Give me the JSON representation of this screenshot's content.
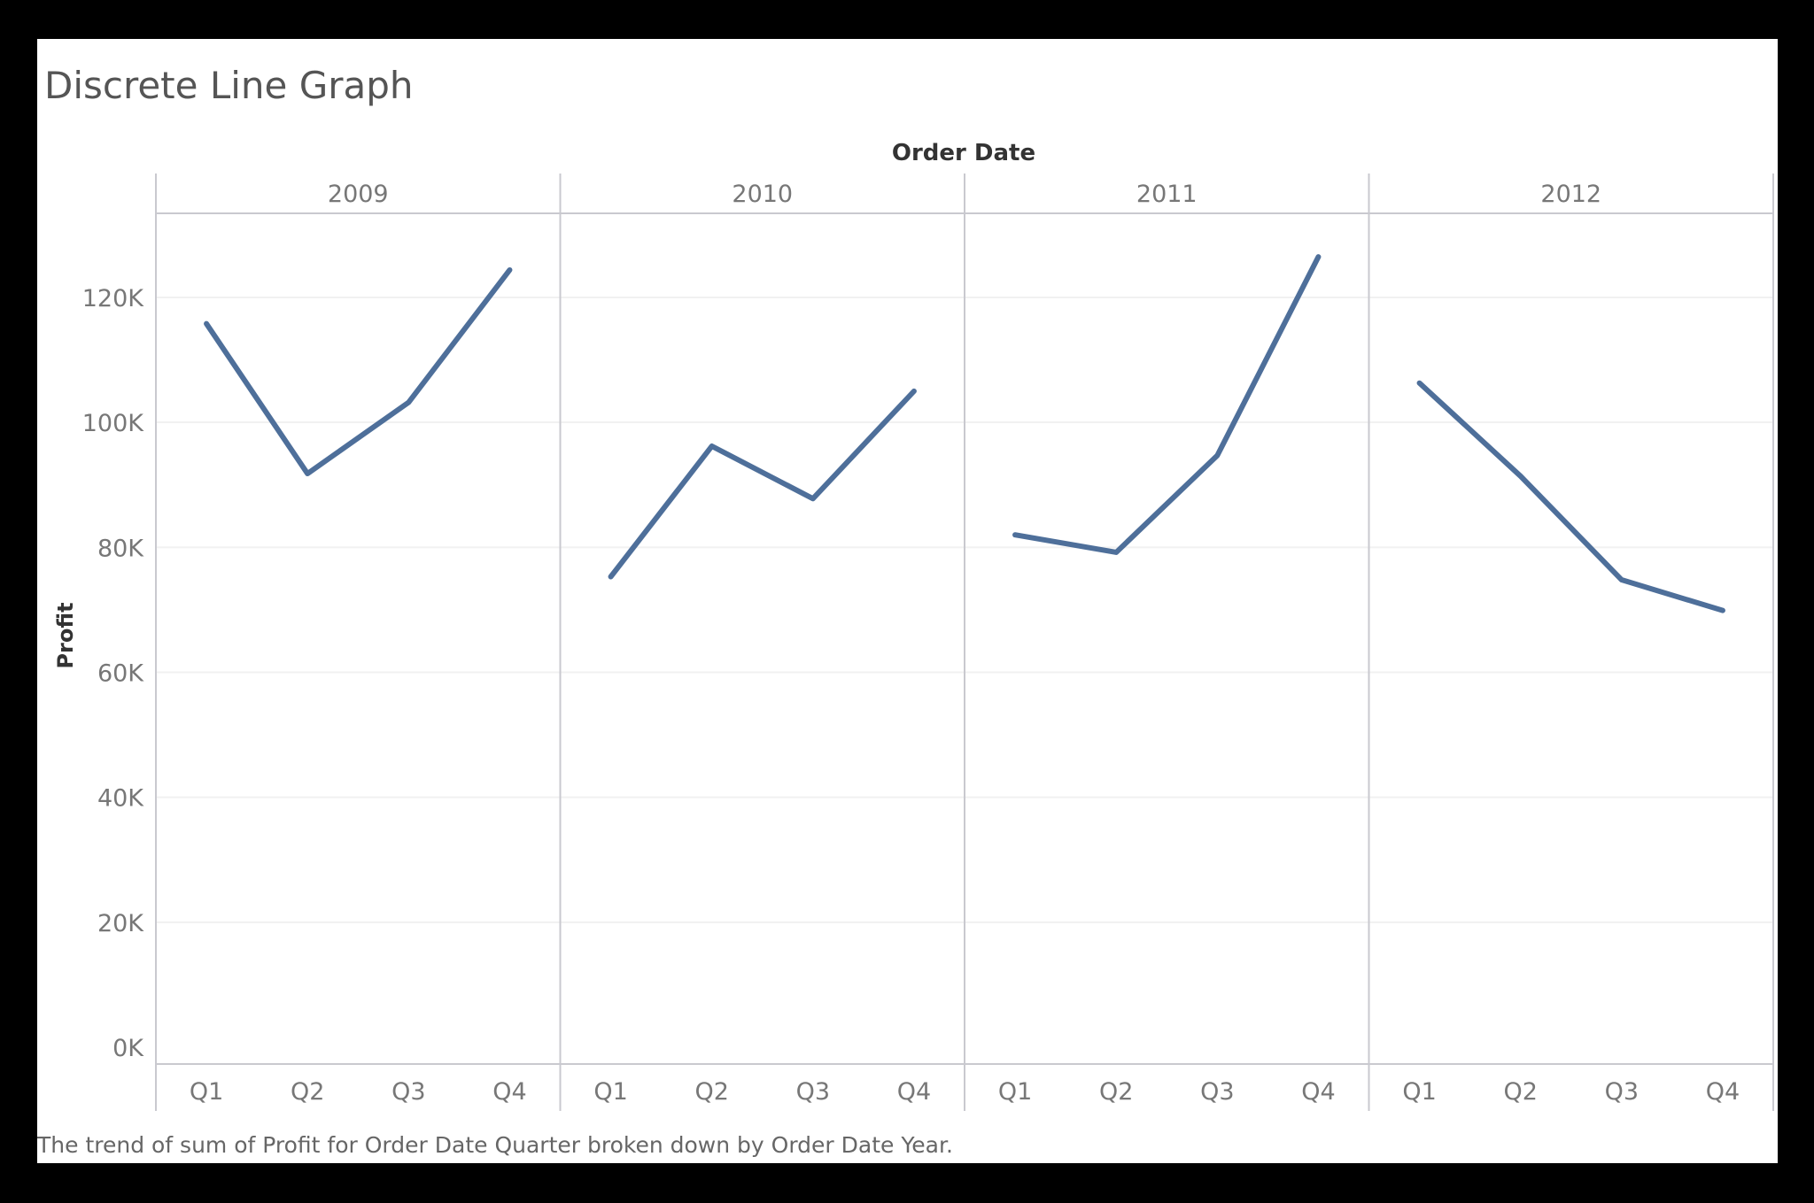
{
  "chart_data": {
    "type": "line",
    "title": "Discrete Line Graph",
    "column_header": "Order Date",
    "ylabel": "Profit",
    "caption": "The trend of sum of Profit for Order Date Quarter broken down by Order Date Year.",
    "ylim": [
      0,
      132000
    ],
    "y_ticks": [
      0,
      20000,
      40000,
      60000,
      80000,
      100000,
      120000
    ],
    "y_tick_labels": [
      "0K",
      "20K",
      "40K",
      "60K",
      "80K",
      "100K",
      "120K"
    ],
    "categories": [
      "Q1",
      "Q2",
      "Q3",
      "Q4"
    ],
    "panels": [
      {
        "year": "2009",
        "values": [
          115800,
          91800,
          103200,
          124400
        ]
      },
      {
        "year": "2010",
        "values": [
          75300,
          96200,
          87800,
          105000
        ]
      },
      {
        "year": "2011",
        "values": [
          82000,
          79200,
          94700,
          126500
        ]
      },
      {
        "year": "2012",
        "values": [
          106300,
          91400,
          74800,
          69900
        ]
      }
    ],
    "line_color": "#4e6f9a",
    "grid": true
  }
}
